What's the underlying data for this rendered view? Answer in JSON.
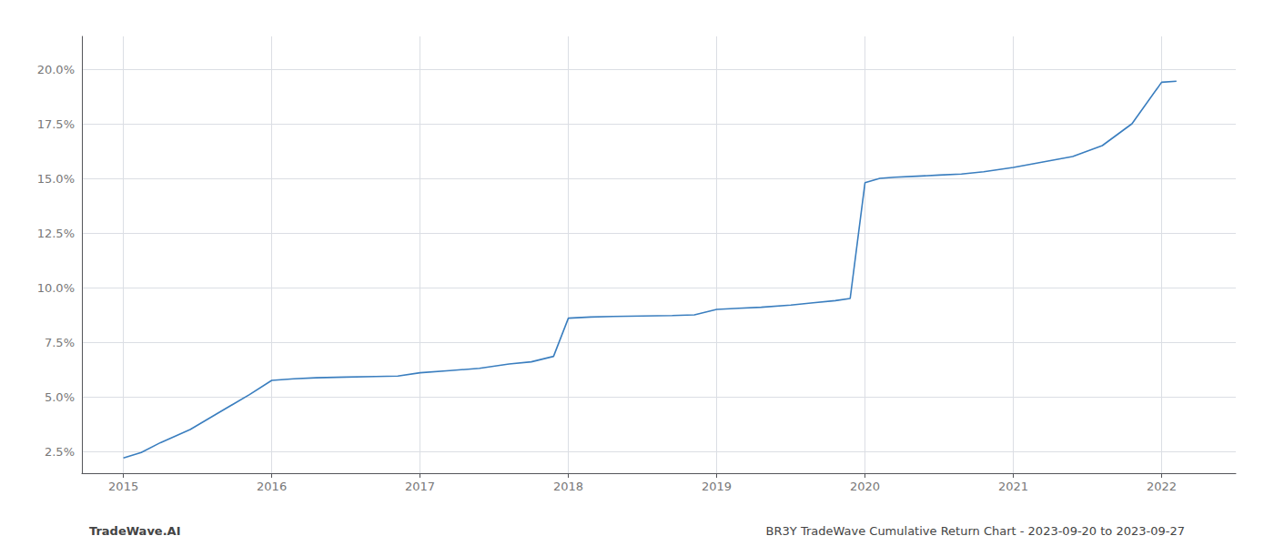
{
  "chart_data": {
    "type": "line",
    "x": [
      2015.0,
      2015.12,
      2015.25,
      2015.45,
      2015.65,
      2015.85,
      2016.0,
      2016.15,
      2016.3,
      2016.5,
      2016.7,
      2016.85,
      2017.0,
      2017.2,
      2017.4,
      2017.6,
      2017.75,
      2017.9,
      2018.0,
      2018.15,
      2018.3,
      2018.5,
      2018.7,
      2018.85,
      2019.0,
      2019.15,
      2019.3,
      2019.5,
      2019.65,
      2019.8,
      2019.9,
      2020.0,
      2020.1,
      2020.2,
      2020.35,
      2020.5,
      2020.65,
      2020.8,
      2021.0,
      2021.2,
      2021.4,
      2021.6,
      2021.8,
      2022.0,
      2022.1
    ],
    "values": [
      2.2,
      2.45,
      2.9,
      3.5,
      4.3,
      5.1,
      5.75,
      5.82,
      5.87,
      5.9,
      5.93,
      5.95,
      6.1,
      6.2,
      6.3,
      6.5,
      6.6,
      6.85,
      8.6,
      8.65,
      8.68,
      8.7,
      8.72,
      8.75,
      9.0,
      9.05,
      9.1,
      9.2,
      9.3,
      9.4,
      9.5,
      14.8,
      15.0,
      15.05,
      15.1,
      15.15,
      15.2,
      15.3,
      15.5,
      15.75,
      16.0,
      16.5,
      17.5,
      19.4,
      19.45
    ],
    "color": "#3a7ebf",
    "xlim": [
      2014.72,
      2022.5
    ],
    "ylim": [
      1.5,
      21.5
    ],
    "xticks": [
      2015,
      2016,
      2017,
      2018,
      2019,
      2020,
      2021,
      2022
    ],
    "yticks": [
      {
        "value": 2.5,
        "label": "2.5%"
      },
      {
        "value": 5.0,
        "label": "5.0%"
      },
      {
        "value": 7.5,
        "label": "7.5%"
      },
      {
        "value": 10.0,
        "label": "10.0%"
      },
      {
        "value": 12.5,
        "label": "12.5%"
      },
      {
        "value": 15.0,
        "label": "15.0%"
      },
      {
        "value": 17.5,
        "label": "17.5%"
      },
      {
        "value": 20.0,
        "label": "20.0%"
      }
    ],
    "grid": true,
    "annotations": [
      "TradeWave.AI",
      "BR3Y TradeWave Cumulative Return Chart - 2023-09-20 to 2023-09-27"
    ]
  }
}
